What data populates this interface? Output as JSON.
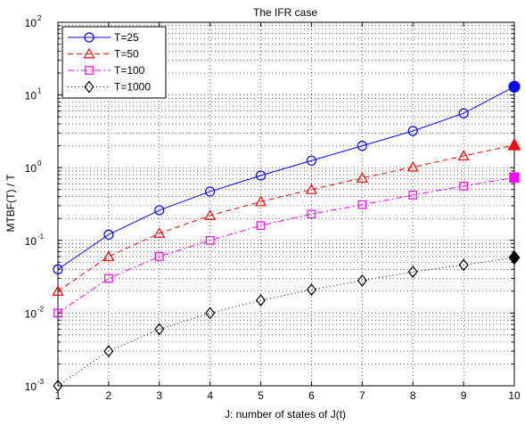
{
  "chart_data": {
    "type": "line",
    "title": "The IFR case",
    "xlabel": "J: number of states of J(t)",
    "ylabel": "MTBF(T) / T",
    "x": [
      1,
      2,
      3,
      4,
      5,
      6,
      7,
      8,
      9,
      10
    ],
    "xlim": [
      1,
      10
    ],
    "ylim": [
      0.001,
      100
    ],
    "yscale": "log",
    "grid": true,
    "legend_position": "top-left",
    "x_tick_labels": [
      "1",
      "2",
      "3",
      "4",
      "5",
      "6",
      "7",
      "8",
      "9",
      "10"
    ],
    "y_tick_labels": [
      {
        "value": 0.001,
        "base": "10",
        "exp": "-3"
      },
      {
        "value": 0.01,
        "base": "10",
        "exp": "-2"
      },
      {
        "value": 0.1,
        "base": "10",
        "exp": "-1"
      },
      {
        "value": 1,
        "base": "10",
        "exp": "0"
      },
      {
        "value": 10,
        "base": "10",
        "exp": "1"
      },
      {
        "value": 100,
        "base": "10",
        "exp": "2"
      }
    ],
    "series": [
      {
        "name": "T=25",
        "color": "#0000ff",
        "marker": "circle",
        "line": "solid",
        "values": [
          0.04,
          0.12,
          0.26,
          0.47,
          0.78,
          1.25,
          2.0,
          3.2,
          5.6,
          13.0
        ]
      },
      {
        "name": "T=50",
        "color": "#ff0000",
        "marker": "triangle",
        "line": "dashed",
        "values": [
          0.02,
          0.06,
          0.125,
          0.22,
          0.34,
          0.5,
          0.72,
          1.02,
          1.45,
          2.05
        ]
      },
      {
        "name": "T=100",
        "color": "#ff00ff",
        "marker": "square",
        "line": "dashdot",
        "values": [
          0.01,
          0.03,
          0.06,
          0.1,
          0.16,
          0.23,
          0.31,
          0.42,
          0.56,
          0.73
        ]
      },
      {
        "name": "T=1000",
        "color": "#000000",
        "marker": "diamond",
        "line": "dotted",
        "values": [
          0.001,
          0.003,
          0.006,
          0.01,
          0.015,
          0.021,
          0.028,
          0.037,
          0.046,
          0.058
        ]
      }
    ]
  }
}
